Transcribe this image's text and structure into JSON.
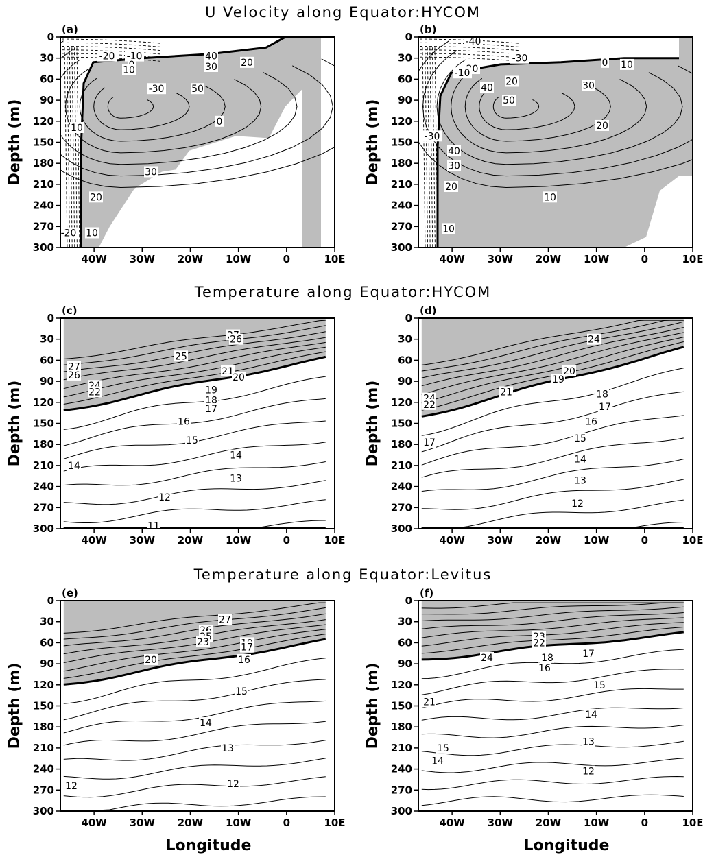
{
  "figure": {
    "row_titles": [
      "U Velocity along Equator:HYCOM",
      "Temperature along Equator:HYCOM",
      "Temperature along Equator:Levitus"
    ],
    "x_axis_label": "Longitude",
    "y_axis_label": "Depth (m)"
  },
  "chart_data": [
    {
      "panel": "(a)",
      "type": "contour",
      "quantity": "U Velocity",
      "source": "HYCOM",
      "xlim": [
        "47W",
        "10E"
      ],
      "ylim": [
        0,
        300
      ],
      "y_inverted": true,
      "x_ticks": [
        "40W",
        "30W",
        "20W",
        "10W",
        "0",
        "10E"
      ],
      "y_ticks": [
        "0",
        "30",
        "60",
        "90",
        "120",
        "150",
        "180",
        "210",
        "240",
        "270",
        "300"
      ],
      "shaded": "positive (eastward) velocity",
      "contour_labels": [
        "-20",
        "-10",
        "0",
        "10",
        "40",
        "30",
        "20",
        "50",
        "-30",
        "10",
        "0",
        "30",
        "20",
        "-20",
        "10"
      ]
    },
    {
      "panel": "(b)",
      "type": "contour",
      "quantity": "U Velocity",
      "source": "HYCOM",
      "xlim": [
        "47W",
        "10E"
      ],
      "ylim": [
        0,
        300
      ],
      "y_inverted": true,
      "x_ticks": [
        "40W",
        "30W",
        "20W",
        "10W",
        "0",
        "10E"
      ],
      "y_ticks": [
        "0",
        "30",
        "60",
        "90",
        "120",
        "150",
        "180",
        "210",
        "240",
        "270",
        "300"
      ],
      "shaded": "positive (eastward) velocity",
      "contour_labels": [
        "-40",
        "-30",
        "-20",
        "-10",
        "0",
        "10",
        "40",
        "20",
        "50",
        "30",
        "-30",
        "20",
        "40",
        "30",
        "20",
        "10",
        "10"
      ]
    },
    {
      "panel": "(c)",
      "type": "contour",
      "quantity": "Temperature",
      "source": "HYCOM",
      "xlim": [
        "47W",
        "10E"
      ],
      "ylim": [
        0,
        300
      ],
      "y_inverted": true,
      "x_ticks": [
        "40W",
        "30W",
        "20W",
        "10W",
        "0",
        "10E"
      ],
      "y_ticks": [
        "0",
        "30",
        "60",
        "90",
        "120",
        "150",
        "180",
        "210",
        "240",
        "270",
        "300"
      ],
      "shaded": "temperature above 20",
      "contour_labels": [
        "27",
        "26",
        "25",
        "27",
        "26",
        "24",
        "22",
        "21",
        "20",
        "19",
        "18",
        "17",
        "16",
        "15",
        "14",
        "14",
        "13",
        "12",
        "11"
      ]
    },
    {
      "panel": "(d)",
      "type": "contour",
      "quantity": "Temperature",
      "source": "HYCOM",
      "xlim": [
        "47W",
        "10E"
      ],
      "ylim": [
        0,
        300
      ],
      "y_inverted": true,
      "x_ticks": [
        "40W",
        "30W",
        "20W",
        "10W",
        "0",
        "10E"
      ],
      "y_ticks": [
        "0",
        "30",
        "60",
        "90",
        "120",
        "150",
        "180",
        "210",
        "240",
        "270",
        "300"
      ],
      "shaded": "temperature above 20",
      "contour_labels": [
        "24",
        "20",
        "19",
        "21",
        "24",
        "22",
        "18",
        "17",
        "16",
        "17",
        "15",
        "14",
        "13",
        "12"
      ]
    },
    {
      "panel": "(e)",
      "type": "contour",
      "quantity": "Temperature",
      "source": "Levitus",
      "xlim": [
        "47W",
        "10E"
      ],
      "ylim": [
        0,
        300
      ],
      "y_inverted": true,
      "x_ticks": [
        "40W",
        "30W",
        "20W",
        "10W",
        "0",
        "10E"
      ],
      "y_ticks": [
        "0",
        "30",
        "60",
        "90",
        "120",
        "150",
        "180",
        "210",
        "240",
        "270",
        "300"
      ],
      "shaded": "temperature above 20",
      "contour_labels": [
        "27",
        "26",
        "25",
        "23",
        "19",
        "17",
        "20",
        "16",
        "15",
        "14",
        "13",
        "12",
        "12"
      ]
    },
    {
      "panel": "(f)",
      "type": "contour",
      "quantity": "Temperature",
      "source": "Levitus",
      "xlim": [
        "47W",
        "10E"
      ],
      "ylim": [
        0,
        300
      ],
      "y_inverted": true,
      "x_ticks": [
        "40W",
        "30W",
        "20W",
        "10W",
        "0",
        "10E"
      ],
      "y_ticks": [
        "0",
        "30",
        "60",
        "90",
        "120",
        "150",
        "180",
        "210",
        "240",
        "270",
        "300"
      ],
      "shaded": "temperature above 20",
      "contour_labels": [
        "23",
        "22",
        "24",
        "18",
        "17",
        "16",
        "15",
        "14",
        "13",
        "12",
        "21",
        "15",
        "14"
      ]
    }
  ],
  "colors": {
    "shade": "#bdbdbd",
    "line": "#000000",
    "background": "#ffffff"
  }
}
